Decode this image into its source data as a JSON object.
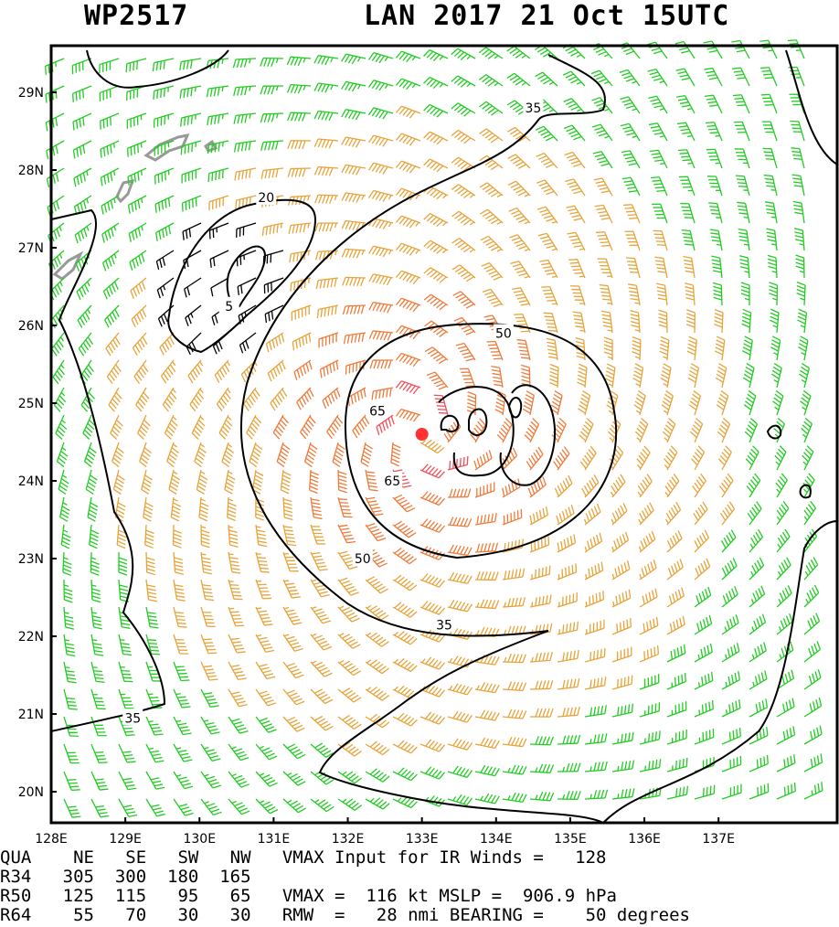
{
  "header": {
    "storm_id": "WP2517",
    "title": "LAN 2017 21 Oct 15UTC"
  },
  "chart_data": {
    "type": "wind barb analysis",
    "xlim": [
      128,
      138.6
    ],
    "ylim": [
      19.6,
      29.6
    ],
    "x_ticks": [
      128,
      129,
      130,
      131,
      132,
      133,
      134,
      135,
      136,
      137
    ],
    "x_tick_labels": [
      "128E",
      "129E",
      "130E",
      "131E",
      "132E",
      "133E",
      "134E",
      "135E",
      "136E",
      "137E"
    ],
    "y_ticks": [
      20,
      21,
      22,
      23,
      24,
      25,
      26,
      27,
      28,
      29
    ],
    "y_tick_labels": [
      "20N",
      "21N",
      "22N",
      "23N",
      "24N",
      "25N",
      "26N",
      "27N",
      "28N",
      "29N"
    ],
    "center": {
      "lon": 133.0,
      "lat": 24.6
    },
    "wind_color_bins": [
      {
        "max_kt": 34,
        "color": "#000000"
      },
      {
        "max_kt": 49,
        "color": "#22cc22"
      },
      {
        "max_kt": 63,
        "color": "#e8a33a"
      },
      {
        "max_kt": 95,
        "color": "#f07a3a"
      },
      {
        "max_kt": 200,
        "color": "#f0505a"
      }
    ],
    "contour_labels": [
      {
        "text": "35",
        "lon": 134.5,
        "lat": 28.8
      },
      {
        "text": "35",
        "lon": 129.1,
        "lat": 20.95
      },
      {
        "text": "35",
        "lon": 133.3,
        "lat": 22.15
      },
      {
        "text": "50",
        "lon": 134.1,
        "lat": 25.9
      },
      {
        "text": "50",
        "lon": 132.2,
        "lat": 23.0
      },
      {
        "text": "65",
        "lon": 132.4,
        "lat": 24.9
      },
      {
        "text": "65",
        "lon": 132.6,
        "lat": 24.0
      },
      {
        "text": "20",
        "lon": 130.9,
        "lat": 27.65
      },
      {
        "text": "5",
        "lon": 130.4,
        "lat": 26.25
      }
    ],
    "colors": {
      "calm": "#000000",
      "ts": "#22cc22",
      "strong": "#e8a33a",
      "hurricane": "#f07a3a",
      "major": "#f0505a",
      "center_dot": "#ff3333",
      "land": "#999999"
    }
  },
  "info": {
    "lines": [
      "QUA    NE   SE   SW   NW   VMAX Input for IR Winds =   128",
      "R34   305  300  180  165",
      "R50   125  115   95   65   VMAX =  116 kt MSLP =  906.9 hPa",
      "R64    55   70   30   30   RMW  =   28 nmi BEARING =    50 degrees"
    ]
  }
}
